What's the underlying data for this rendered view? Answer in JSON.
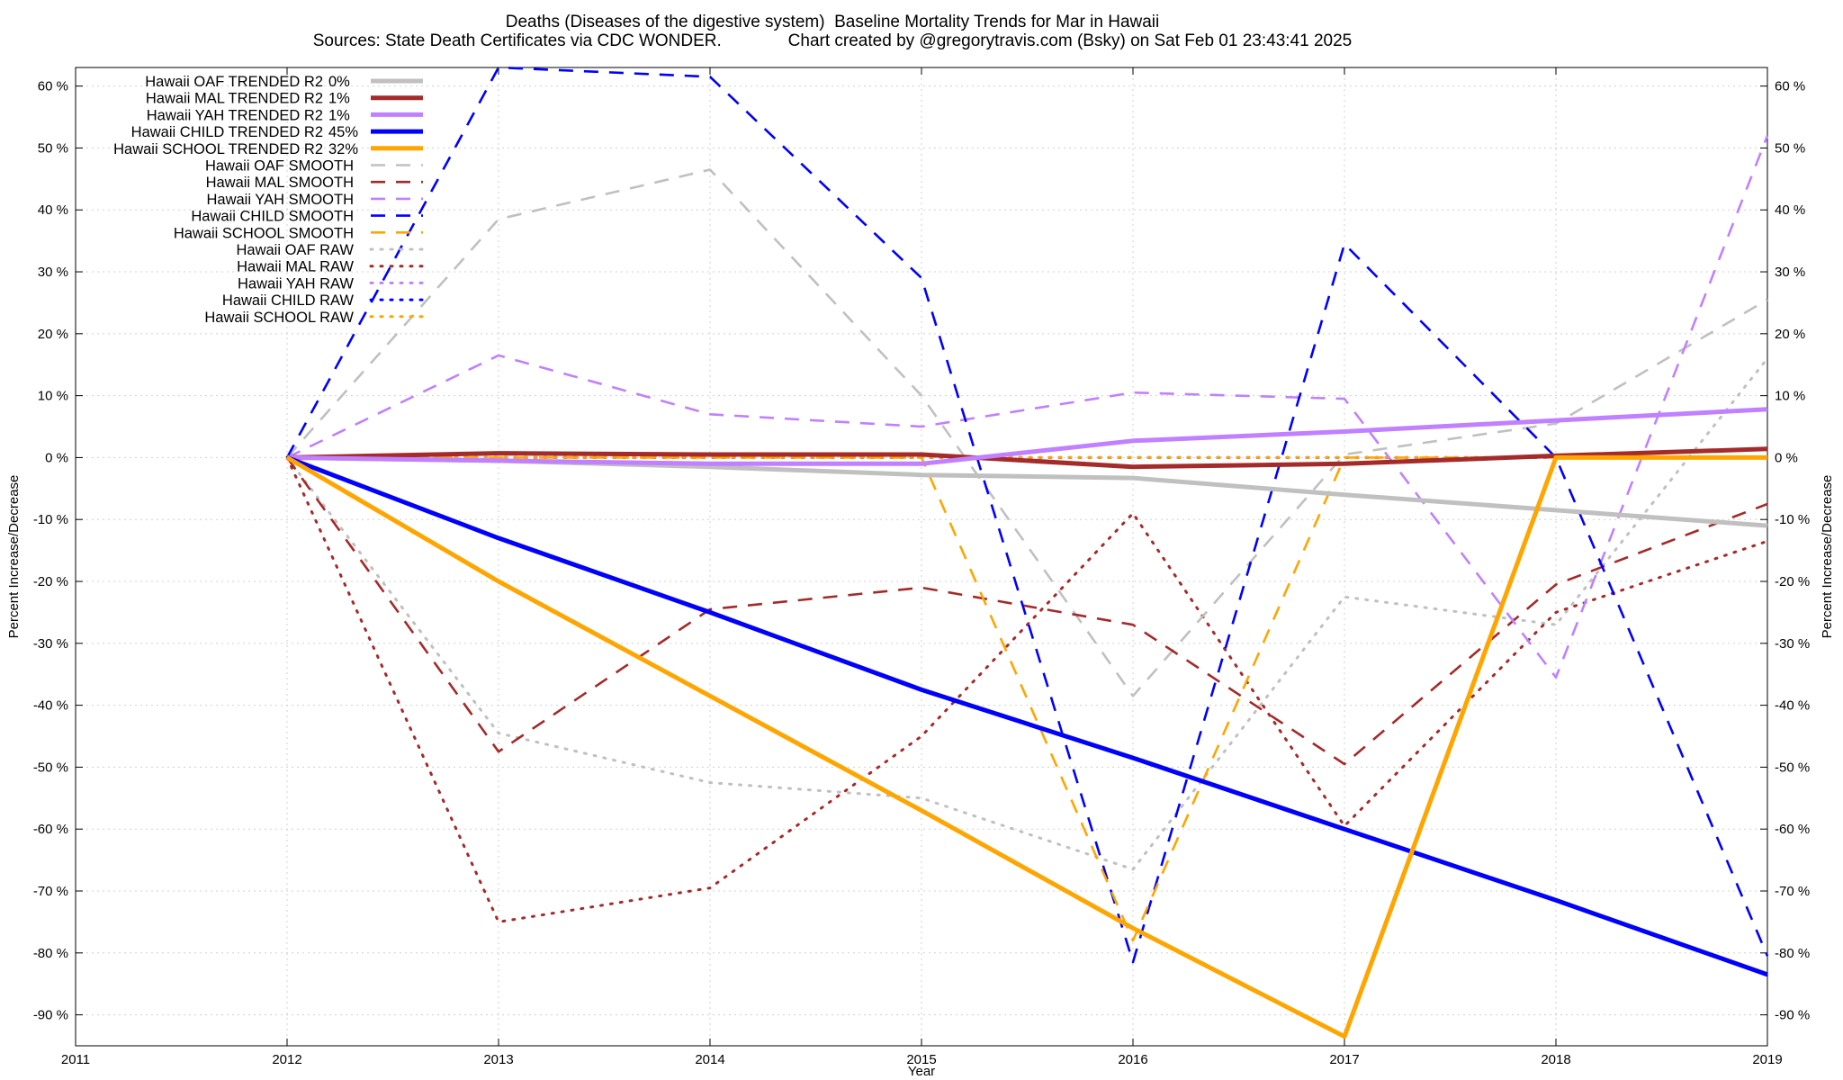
{
  "title": {
    "line1": "Deaths (Diseases of the digestive system)  Baseline Mortality Trends for Mar in Hawaii",
    "line2": "Sources: State Death Certificates via CDC WONDER.              Chart created by @gregorytravis.com (Bsky) on Sat Feb 01 23:43:41 2025"
  },
  "chart_data": {
    "type": "line",
    "xlabel": "Year",
    "ylabel": "Percent Increase/Decrease",
    "y2label": "Percent Increase/Decrease",
    "xlim": [
      2011,
      2019
    ],
    "ylim": [
      -95,
      63
    ],
    "x_ticks": [
      "2011",
      "2012",
      "2013",
      "2014",
      "2015",
      "2016",
      "2017",
      "2018",
      "2019"
    ],
    "y_ticks": [
      "60 %",
      "50 %",
      "40 %",
      "30 %",
      "20 %",
      "10 %",
      "0 %",
      "-10 %",
      "-20 %",
      "-30 %",
      "-40 %",
      "-50 %",
      "-60 %",
      "-70 %",
      "-80 %",
      "-90 %"
    ],
    "y_tick_values": [
      60,
      50,
      40,
      30,
      20,
      10,
      0,
      -10,
      -20,
      -30,
      -40,
      -50,
      -60,
      -70,
      -80,
      -90
    ],
    "grid": true,
    "legend_position": "top-left",
    "series": [
      {
        "name": "Hawaii OAF TRENDED R2",
        "r2": "0%",
        "style": "solid",
        "color": "#c0c0c0",
        "x": [
          2012,
          2013,
          2014,
          2015,
          2016,
          2017,
          2018,
          2019
        ],
        "y": [
          0,
          -0.5,
          -1.5,
          -2.8,
          -3.3,
          -6,
          -8.5,
          -11
        ]
      },
      {
        "name": "Hawaii MAL TRENDED R2",
        "r2": "1%",
        "style": "solid",
        "color": "#a52a2a",
        "x": [
          2012,
          2013,
          2014,
          2015,
          2016,
          2017,
          2018,
          2019
        ],
        "y": [
          0,
          0.7,
          0.5,
          0.5,
          -1.5,
          -1,
          0.3,
          1.4
        ]
      },
      {
        "name": "Hawaii YAH TRENDED R2",
        "r2": "1%",
        "style": "solid",
        "color": "#c080ff",
        "x": [
          2012,
          2013,
          2014,
          2015,
          2016,
          2017,
          2018,
          2019
        ],
        "y": [
          0,
          -0.5,
          -1,
          -1,
          2.7,
          4.2,
          6,
          7.8
        ]
      },
      {
        "name": "Hawaii CHILD TRENDED R2",
        "r2": "45%",
        "style": "solid",
        "color": "#0000ff",
        "x": [
          2012,
          2013,
          2014,
          2015,
          2016,
          2017,
          2018,
          2019
        ],
        "y": [
          0,
          -13,
          -25,
          -37.5,
          -48.5,
          -60,
          -71.5,
          -83.5
        ]
      },
      {
        "name": "Hawaii SCHOOL TRENDED R2",
        "r2": "32%",
        "style": "solid",
        "color": "#ffa500",
        "x": [
          2012,
          2013,
          2014,
          2015,
          2016,
          2017,
          2018,
          2019
        ],
        "y": [
          0,
          -20,
          -38.5,
          -57,
          -76,
          -93.5,
          0,
          0
        ]
      },
      {
        "name": "Hawaii OAF SMOOTH",
        "r2": "",
        "style": "dashed",
        "color": "#c0c0c0",
        "x": [
          2012,
          2013,
          2014,
          2015,
          2016,
          2017,
          2018,
          2019
        ],
        "y": [
          0,
          38.5,
          46.5,
          10,
          -38.5,
          0.5,
          5.5,
          25.5
        ]
      },
      {
        "name": "Hawaii MAL SMOOTH",
        "r2": "",
        "style": "dashed",
        "color": "#a52a2a",
        "x": [
          2012,
          2013,
          2014,
          2015,
          2016,
          2017,
          2018,
          2019
        ],
        "y": [
          0,
          -47.5,
          -24.5,
          -21,
          -27,
          -49.5,
          -20.5,
          -7.5
        ]
      },
      {
        "name": "Hawaii YAH SMOOTH",
        "r2": "",
        "style": "dashed",
        "color": "#c080ff",
        "x": [
          2012,
          2013,
          2014,
          2015,
          2016,
          2017,
          2018,
          2019
        ],
        "y": [
          0,
          16.5,
          7,
          5,
          10.5,
          9.5,
          -35.5,
          52
        ]
      },
      {
        "name": "Hawaii CHILD SMOOTH",
        "r2": "",
        "style": "dashed",
        "color": "#0000ff",
        "x": [
          2012,
          2013,
          2014,
          2015,
          2016,
          2017,
          2018,
          2019
        ],
        "y": [
          0,
          63,
          61.5,
          29,
          -81.5,
          34.5,
          0,
          -80.5
        ]
      },
      {
        "name": "Hawaii SCHOOL SMOOTH",
        "r2": "",
        "style": "dashed",
        "color": "#ffa500",
        "x": [
          2012,
          2013,
          2014,
          2015,
          2016,
          2017,
          2018,
          2019
        ],
        "y": [
          0,
          0,
          0,
          0,
          -78,
          0,
          0,
          0
        ]
      },
      {
        "name": "Hawaii OAF RAW",
        "r2": "",
        "style": "dotted",
        "color": "#c0c0c0",
        "x": [
          2012,
          2013,
          2014,
          2015,
          2016,
          2017,
          2018,
          2019
        ],
        "y": [
          0,
          -44.5,
          -52.5,
          -55,
          -66.5,
          -22.5,
          -27,
          16
        ]
      },
      {
        "name": "Hawaii MAL RAW",
        "r2": "",
        "style": "dotted",
        "color": "#a52a2a",
        "x": [
          2012,
          2013,
          2014,
          2015,
          2016,
          2017,
          2018,
          2019
        ],
        "y": [
          0,
          -75,
          -69.5,
          -45,
          -9,
          -59.5,
          -25,
          -13.5
        ]
      },
      {
        "name": "Hawaii YAH RAW",
        "r2": "",
        "style": "dotted",
        "color": "#c080ff",
        "x": [
          2012,
          2013,
          2014,
          2015,
          2016,
          2017,
          2018,
          2019
        ],
        "y": [
          0,
          0,
          0,
          0,
          0,
          0,
          0,
          0
        ]
      },
      {
        "name": "Hawaii CHILD RAW",
        "r2": "",
        "style": "dotted",
        "color": "#0000ff",
        "x": [
          2012,
          2013,
          2014,
          2015,
          2016,
          2017,
          2018,
          2019
        ],
        "y": [
          0,
          0,
          0,
          0,
          0,
          0,
          0,
          0
        ]
      },
      {
        "name": "Hawaii SCHOOL RAW",
        "r2": "",
        "style": "dotted",
        "color": "#ffa500",
        "x": [
          2012,
          2013,
          2014,
          2015,
          2016,
          2017,
          2018,
          2019
        ],
        "y": [
          0,
          0,
          0,
          0,
          0,
          0,
          0,
          0
        ]
      }
    ]
  }
}
